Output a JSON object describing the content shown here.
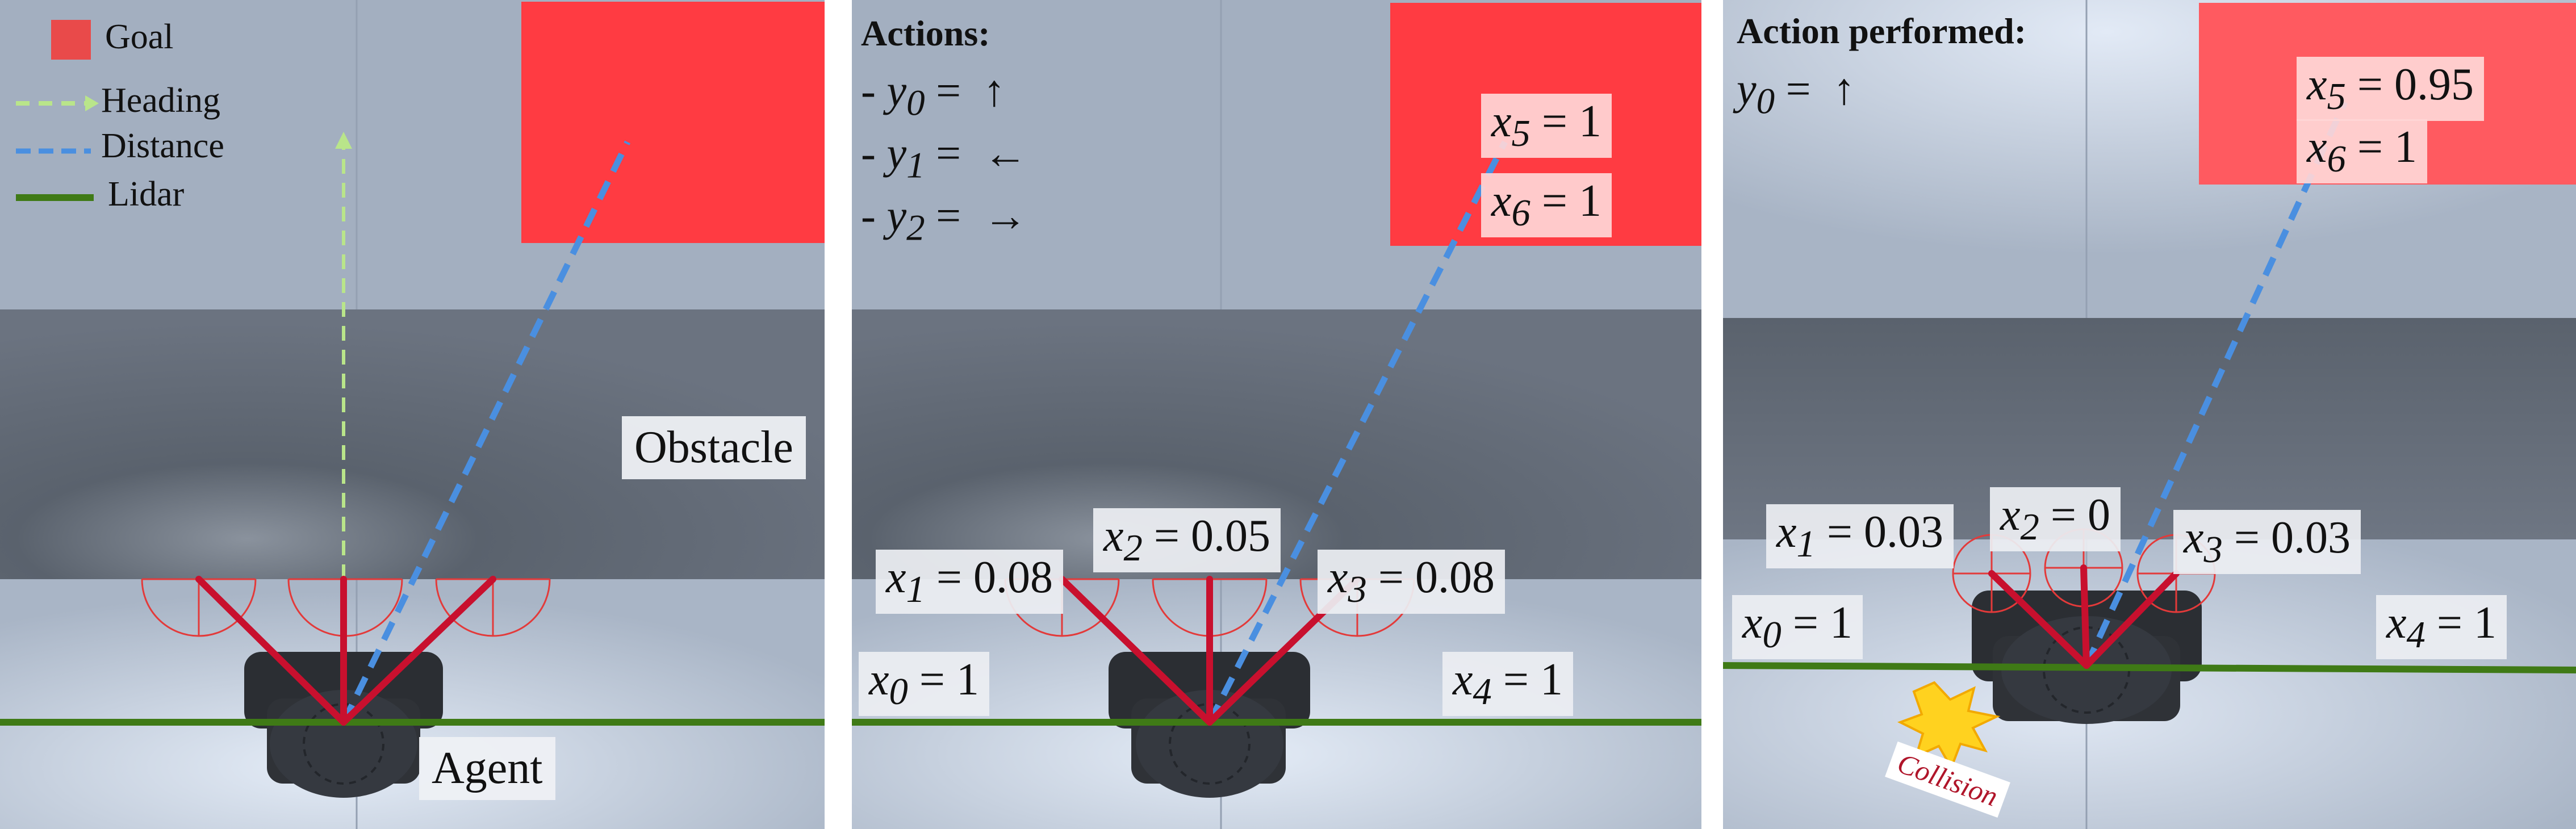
{
  "colors": {
    "goal": "#ff3b42",
    "heading": "#b9e58a",
    "distance": "#4a8fe0",
    "lidar_ground": "#3f7a16",
    "lidar_rays": "#c8102e",
    "obstacle": "#5c6470",
    "floor": "#b9c4d4"
  },
  "legend": {
    "goal": "Goal",
    "heading": "Heading",
    "distance": "Distance",
    "lidar": "Lidar"
  },
  "panel1": {
    "obstacle": "Obstacle",
    "agent": "Agent"
  },
  "panel2": {
    "title": "Actions:",
    "actions": [
      {
        "var": "y",
        "sub": "0",
        "arrow": "↑"
      },
      {
        "var": "y",
        "sub": "1",
        "arrow": "←"
      },
      {
        "var": "y",
        "sub": "2",
        "arrow": "→"
      }
    ],
    "obs": {
      "x0": "1",
      "x1": "0.08",
      "x2": "0.05",
      "x3": "0.08",
      "x4": "1",
      "x5": "1",
      "x6": "1"
    }
  },
  "panel3": {
    "title": "Action performed:",
    "action": {
      "var": "y",
      "sub": "0",
      "arrow": "↑"
    },
    "obs": {
      "x0": "1",
      "x1": "0.03",
      "x2": "0",
      "x3": "0.03",
      "x4": "1",
      "x5": "0.95",
      "x6": "1"
    },
    "collision": "Collision"
  }
}
